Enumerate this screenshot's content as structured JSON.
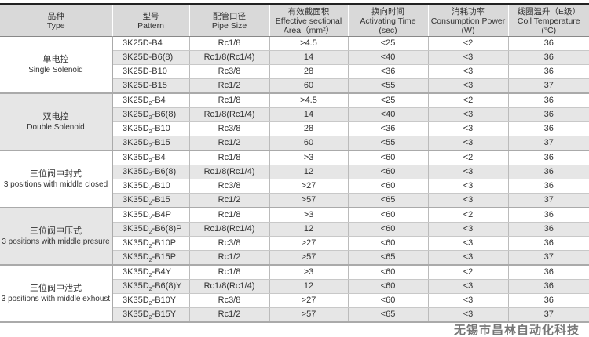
{
  "headers": [
    {
      "cn": "品种",
      "en": "Type"
    },
    {
      "cn": "型号",
      "en": "Pattern"
    },
    {
      "cn": "配管口径",
      "en": "Pipe Size"
    },
    {
      "cn": "有效截面积",
      "en": "Effective sectional",
      "en2": "Area（mm²）"
    },
    {
      "cn": "换向时间",
      "en": "Activating Time",
      "en2": "(sec)"
    },
    {
      "cn": "消耗功率",
      "en": "Consumption Power",
      "en2": "(W)"
    },
    {
      "cn": "线圈温升（E级）",
      "en": "Coil Temperature",
      "en2": "(°C)"
    }
  ],
  "groups": [
    {
      "cn": "单电控",
      "en": "Single Solenoid",
      "rows": [
        {
          "base": "3K25D",
          "sub": "",
          "suffix": "-B4",
          "pipe": "Rc1/8",
          "area": ">4.5",
          "time": "<25",
          "power": "<2",
          "temp": "36"
        },
        {
          "base": "3K25D",
          "sub": "",
          "suffix": "-B6(8)",
          "pipe": "Rc1/8(Rc1/4)",
          "area": "14",
          "time": "<40",
          "power": "<3",
          "temp": "36"
        },
        {
          "base": "3K25D",
          "sub": "",
          "suffix": "-B10",
          "pipe": "Rc3/8",
          "area": "28",
          "time": "<36",
          "power": "<3",
          "temp": "36"
        },
        {
          "base": "3K25D",
          "sub": "",
          "suffix": "-B15",
          "pipe": "Rc1/2",
          "area": "60",
          "time": "<55",
          "power": "<3",
          "temp": "37"
        }
      ]
    },
    {
      "cn": "双电控",
      "en": "Double Solenoid",
      "rows": [
        {
          "base": "3K25D",
          "sub": "2",
          "suffix": "-B4",
          "pipe": "Rc1/8",
          "area": ">4.5",
          "time": "<25",
          "power": "<2",
          "temp": "36"
        },
        {
          "base": "3K25D",
          "sub": "2",
          "suffix": "-B6(8)",
          "pipe": "Rc1/8(Rc1/4)",
          "area": "14",
          "time": "<40",
          "power": "<3",
          "temp": "36"
        },
        {
          "base": "3K25D",
          "sub": "2",
          "suffix": "-B10",
          "pipe": "Rc3/8",
          "area": "28",
          "time": "<36",
          "power": "<3",
          "temp": "36"
        },
        {
          "base": "3K25D",
          "sub": "2",
          "suffix": "-B15",
          "pipe": "Rc1/2",
          "area": "60",
          "time": "<55",
          "power": "<3",
          "temp": "37"
        }
      ]
    },
    {
      "cn": "三位阀中封式",
      "en": "3 positions with middle closed",
      "rows": [
        {
          "base": "3K35D",
          "sub": "2",
          "suffix": "-B4",
          "pipe": "Rc1/8",
          "area": ">3",
          "time": "<60",
          "power": "<2",
          "temp": "36"
        },
        {
          "base": "3K35D",
          "sub": "2",
          "suffix": "-B6(8)",
          "pipe": "Rc1/8(Rc1/4)",
          "area": "12",
          "time": "<60",
          "power": "<3",
          "temp": "36"
        },
        {
          "base": "3K35D",
          "sub": "2",
          "suffix": "-B10",
          "pipe": "Rc3/8",
          "area": ">27",
          "time": "<60",
          "power": "<3",
          "temp": "36"
        },
        {
          "base": "3K35D",
          "sub": "2",
          "suffix": "-B15",
          "pipe": "Rc1/2",
          "area": ">57",
          "time": "<65",
          "power": "<3",
          "temp": "37"
        }
      ]
    },
    {
      "cn": "三位阀中压式",
      "en": "3 positions with middle  presure",
      "rows": [
        {
          "base": "3K35D",
          "sub": "2",
          "suffix": "-B4P",
          "pipe": "Rc1/8",
          "area": ">3",
          "time": "<60",
          "power": "<2",
          "temp": "36"
        },
        {
          "base": "3K35D",
          "sub": "2",
          "suffix": "-B6(8)P",
          "pipe": "Rc1/8(Rc1/4)",
          "area": "12",
          "time": "<60",
          "power": "<3",
          "temp": "36"
        },
        {
          "base": "3K35D",
          "sub": "2",
          "suffix": "-B10P",
          "pipe": "Rc3/8",
          "area": ">27",
          "time": "<60",
          "power": "<3",
          "temp": "36"
        },
        {
          "base": "3K35D",
          "sub": "2",
          "suffix": "-B15P",
          "pipe": "Rc1/2",
          "area": ">57",
          "time": "<65",
          "power": "<3",
          "temp": "37"
        }
      ]
    },
    {
      "cn": "三位阀中泄式",
      "en": "3 positions with middle exhoust",
      "rows": [
        {
          "base": "3K35D",
          "sub": "2",
          "suffix": "-B4Y",
          "pipe": "Rc1/8",
          "area": ">3",
          "time": "<60",
          "power": "<2",
          "temp": "36"
        },
        {
          "base": "3K35D",
          "sub": "2",
          "suffix": "-B6(8)Y",
          "pipe": "Rc1/8(Rc1/4)",
          "area": "12",
          "time": "<60",
          "power": "<3",
          "temp": "36"
        },
        {
          "base": "3K35D",
          "sub": "2",
          "suffix": "-B10Y",
          "pipe": "Rc3/8",
          "area": ">27",
          "time": "<60",
          "power": "<3",
          "temp": "36"
        },
        {
          "base": "3K35D",
          "sub": "2",
          "suffix": "-B15Y",
          "pipe": "Rc1/2",
          "area": ">57",
          "time": "<65",
          "power": "<3",
          "temp": "37"
        }
      ]
    }
  ],
  "watermark": "无锡市昌林自动化科技"
}
